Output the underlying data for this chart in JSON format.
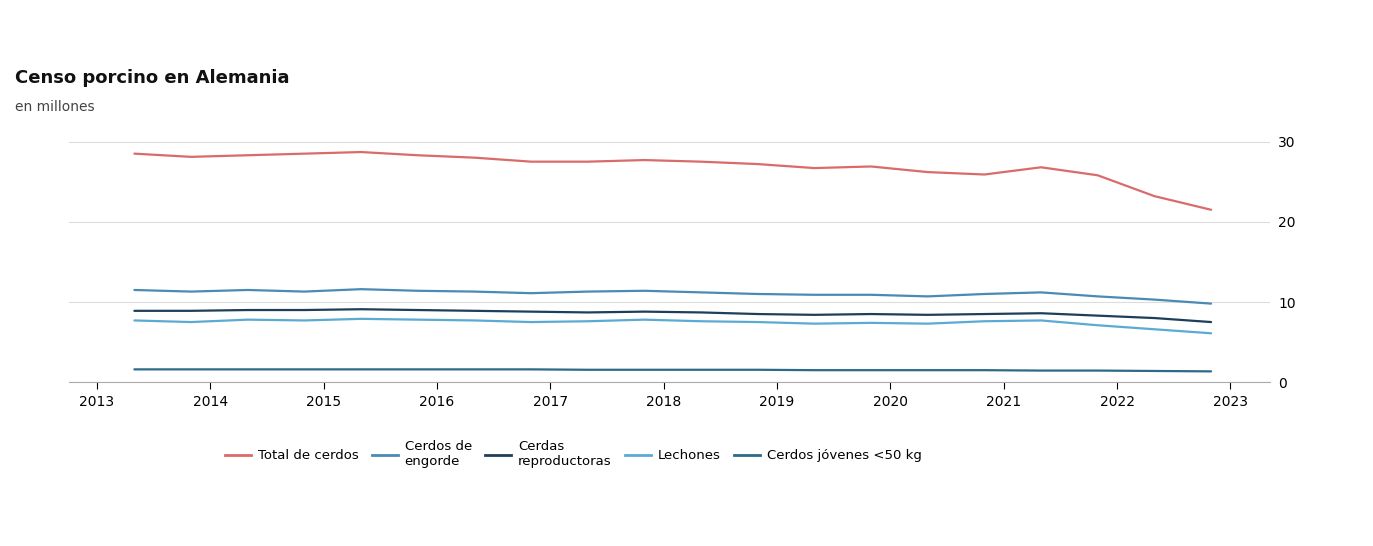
{
  "title": "Censo porcino en Alemania",
  "subtitle": "en millones",
  "title_fontsize": 13,
  "subtitle_fontsize": 10,
  "background_color": "#ffffff",
  "x_ticks": [
    2013,
    2014,
    2015,
    2016,
    2017,
    2018,
    2019,
    2020,
    2021,
    2022,
    2023
  ],
  "x_values": [
    2013.33,
    2013.83,
    2014.33,
    2014.83,
    2015.33,
    2015.83,
    2016.33,
    2016.83,
    2017.33,
    2017.83,
    2018.33,
    2018.83,
    2019.33,
    2019.83,
    2020.33,
    2020.83,
    2021.33,
    2021.83,
    2022.33,
    2022.83
  ],
  "series": [
    {
      "name": "Total de cerdos",
      "color": "#d96b6b",
      "linewidth": 1.6,
      "values": [
        28.5,
        28.1,
        28.3,
        28.5,
        28.7,
        28.3,
        28.0,
        27.5,
        27.5,
        27.7,
        27.5,
        27.2,
        26.7,
        26.9,
        26.2,
        25.9,
        26.8,
        25.8,
        23.2,
        21.5
      ]
    },
    {
      "name": "Cerdos de engorde",
      "color": "#4a8ab5",
      "linewidth": 1.6,
      "values": [
        11.5,
        11.3,
        11.5,
        11.3,
        11.6,
        11.4,
        11.3,
        11.1,
        11.3,
        11.4,
        11.2,
        11.0,
        10.9,
        10.9,
        10.7,
        11.0,
        11.2,
        10.7,
        10.3,
        9.8
      ]
    },
    {
      "name": "Cerdas reproductoras",
      "color": "#1e3f5a",
      "linewidth": 1.6,
      "values": [
        8.9,
        8.9,
        9.0,
        9.0,
        9.1,
        9.0,
        8.9,
        8.8,
        8.7,
        8.8,
        8.7,
        8.5,
        8.4,
        8.5,
        8.4,
        8.5,
        8.6,
        8.3,
        8.0,
        7.5
      ]
    },
    {
      "name": "Lechones",
      "color": "#5aaad4",
      "linewidth": 1.6,
      "values": [
        7.7,
        7.5,
        7.8,
        7.7,
        7.9,
        7.8,
        7.7,
        7.5,
        7.6,
        7.8,
        7.6,
        7.5,
        7.3,
        7.4,
        7.3,
        7.6,
        7.7,
        7.1,
        6.6,
        6.1
      ]
    },
    {
      "name": "Cerdos jóvenes <50 kg",
      "color": "#2c6a8a",
      "linewidth": 1.6,
      "values": [
        1.6,
        1.6,
        1.6,
        1.6,
        1.6,
        1.6,
        1.6,
        1.6,
        1.55,
        1.55,
        1.55,
        1.55,
        1.5,
        1.5,
        1.5,
        1.5,
        1.45,
        1.45,
        1.4,
        1.35
      ]
    }
  ],
  "ylim": [
    0,
    32
  ],
  "yticks": [
    0,
    10,
    20,
    30
  ],
  "grid_color": "#dddddd",
  "grid_linewidth": 0.8,
  "legend_items": [
    {
      "label": "Total de cerdos",
      "color": "#d96b6b"
    },
    {
      "label": "Cerdos de\nengorde",
      "color": "#4a8ab5"
    },
    {
      "label": "Cerdas\nreproductoras",
      "color": "#1e3f5a"
    },
    {
      "label": "Lechones",
      "color": "#5aaad4"
    },
    {
      "label": "Cerdos jóvenes <50 kg",
      "color": "#2c6a8a"
    }
  ]
}
